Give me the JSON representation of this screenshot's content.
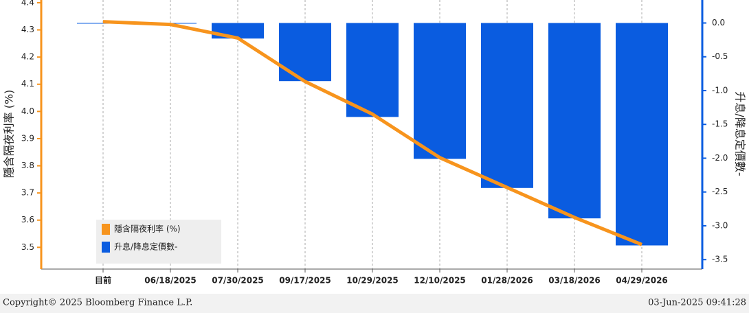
{
  "chart_data": {
    "type": "bar_line",
    "y_label": "隱含隔夜利率 (%)",
    "y2_label": "升息/降息定價數-",
    "categories": [
      "目前",
      "06/18/2025",
      "07/30/2025",
      "09/17/2025",
      "10/29/2025",
      "12/10/2025",
      "01/28/2026",
      "03/18/2026",
      "04/29/2026"
    ],
    "series": [
      {
        "name": "隱含隔夜利率 (%)",
        "type": "line",
        "color": "#f7941d",
        "axis": "y",
        "values": [
          4.33,
          4.32,
          4.27,
          4.11,
          3.99,
          3.83,
          3.72,
          3.61,
          3.51
        ]
      },
      {
        "name": "升息/降息定價數-",
        "type": "bar",
        "color": "#0a5ce0",
        "axis": "y2",
        "values": [
          -0.01,
          -0.01,
          -0.23,
          -0.86,
          -1.39,
          -2.01,
          -2.44,
          -2.89,
          -3.29
        ]
      }
    ],
    "ylim": [
      3.42,
      4.41
    ],
    "yticks": [
      3.5,
      3.6,
      3.7,
      3.8,
      3.9,
      {
        "value": 4.0,
        "label": "4.0"
      },
      4.1,
      4.2,
      4.3,
      4.4
    ],
    "y2lim": [
      -3.64,
      0.34
    ],
    "y2ticks": [
      -3.5,
      {
        "value": -3.0,
        "label": "-3.0"
      },
      -2.5,
      {
        "value": -2.0,
        "label": "-2.0"
      },
      -1.5,
      {
        "value": -1.0,
        "label": "-1.0"
      },
      -0.5,
      {
        "value": 0.0,
        "label": "0.0"
      }
    ],
    "grid": "x",
    "legend": "lower left"
  },
  "footer": {
    "copyright": "Copyright© 2025 Bloomberg Finance L.P.",
    "timestamp": "03-Jun-2025 09:41:28"
  }
}
